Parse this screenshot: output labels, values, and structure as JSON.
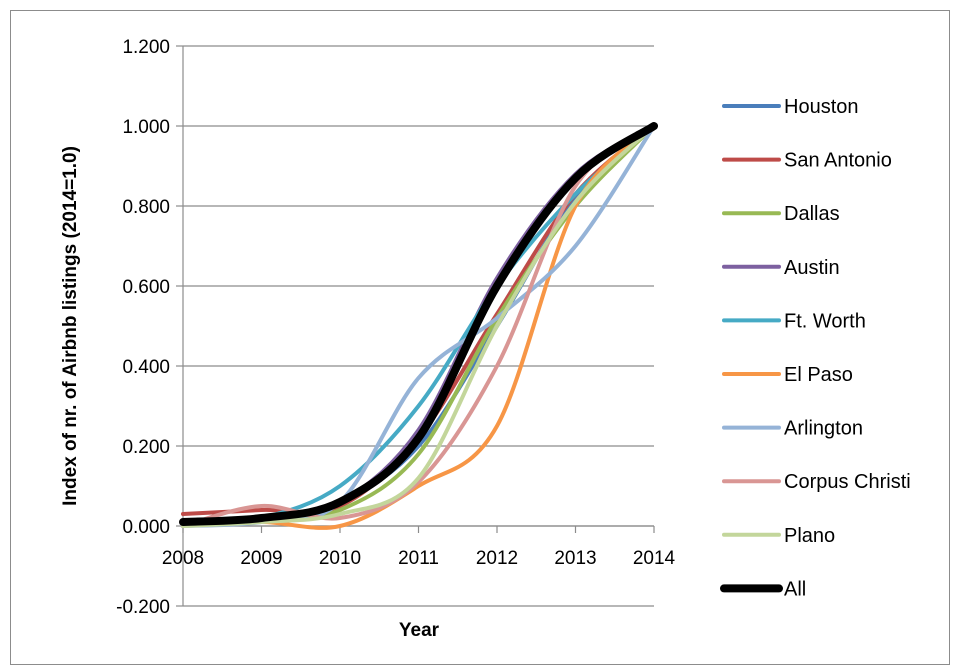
{
  "chart_data": {
    "type": "line",
    "xlabel": "Year",
    "ylabel": "Index of nr. of Airbnb listings (2014=1.0)",
    "ylim": [
      -0.2,
      1.2
    ],
    "xlim": [
      2008,
      2014
    ],
    "yticks": [
      "-0.200",
      "0.000",
      "0.200",
      "0.400",
      "0.600",
      "0.800",
      "1.000",
      "1.200"
    ],
    "xticks": [
      "2008",
      "2009",
      "2010",
      "2011",
      "2012",
      "2013",
      "2014"
    ],
    "grid": "horizontal",
    "legend_position": "right",
    "x": [
      2008,
      2009,
      2010,
      2011,
      2012,
      2013,
      2014
    ],
    "series": [
      {
        "name": "Houston",
        "color": "#4a7ebb",
        "width": 4,
        "values": [
          0.01,
          0.02,
          0.06,
          0.2,
          0.5,
          0.82,
          1.0
        ]
      },
      {
        "name": "San Antonio",
        "color": "#be4b48",
        "width": 4,
        "values": [
          0.03,
          0.04,
          0.05,
          0.22,
          0.53,
          0.83,
          1.0
        ]
      },
      {
        "name": "Dallas",
        "color": "#98b954",
        "width": 4,
        "values": [
          0.01,
          0.015,
          0.04,
          0.18,
          0.52,
          0.8,
          1.0
        ]
      },
      {
        "name": "Austin",
        "color": "#7d60a0",
        "width": 4,
        "values": [
          0.01,
          0.02,
          0.06,
          0.24,
          0.62,
          0.88,
          1.0
        ]
      },
      {
        "name": "Ft. Worth",
        "color": "#46aac5",
        "width": 4,
        "values": [
          0.0,
          0.02,
          0.1,
          0.3,
          0.6,
          0.83,
          1.0
        ]
      },
      {
        "name": "El Paso",
        "color": "#f79646",
        "width": 4,
        "values": [
          0.0,
          0.01,
          0.0,
          0.1,
          0.25,
          0.8,
          1.0
        ]
      },
      {
        "name": "Arlington",
        "color": "#95b3d7",
        "width": 4,
        "values": [
          0.0,
          0.01,
          0.06,
          0.37,
          0.52,
          0.7,
          1.0
        ]
      },
      {
        "name": "Corpus Christi",
        "color": "#d99694",
        "width": 4,
        "values": [
          0.0,
          0.05,
          0.02,
          0.11,
          0.4,
          0.85,
          1.0
        ]
      },
      {
        "name": "Plano",
        "color": "#c3d69b",
        "width": 4,
        "values": [
          0.0,
          0.01,
          0.03,
          0.12,
          0.5,
          0.81,
          1.0
        ]
      },
      {
        "name": "All",
        "color": "#000000",
        "width": 8,
        "values": [
          0.01,
          0.02,
          0.06,
          0.22,
          0.6,
          0.87,
          1.0
        ]
      }
    ]
  }
}
